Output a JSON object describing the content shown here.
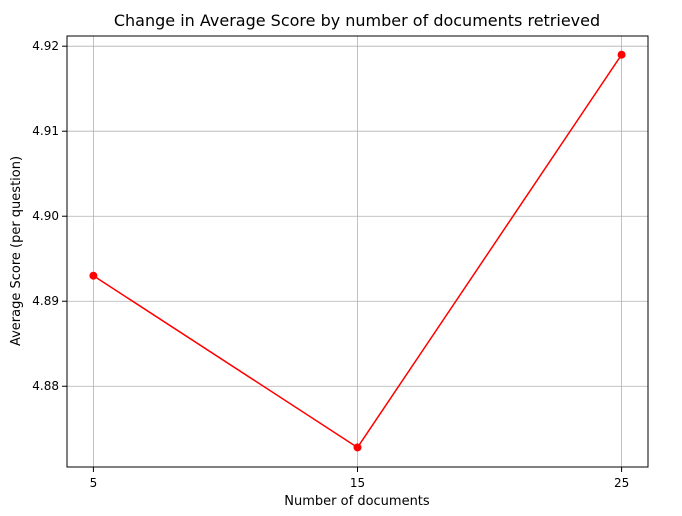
{
  "chart_data": {
    "type": "line",
    "title": "Change in Average Score by number of documents retrieved",
    "xlabel": "Number of documents",
    "ylabel": "Average Score (per question)",
    "x": [
      5,
      15,
      25
    ],
    "x_tick_labels": [
      "5",
      "15",
      "25"
    ],
    "y_ticks": [
      4.88,
      4.89,
      4.9,
      4.91,
      4.92
    ],
    "y_tick_labels": [
      "4.88",
      "4.89",
      "4.90",
      "4.91",
      "4.92"
    ],
    "xlim": [
      4.0,
      26.0
    ],
    "ylim": [
      4.8705,
      4.9212
    ],
    "grid": true,
    "series": [
      {
        "values": [
          4.893,
          4.8728,
          4.919
        ],
        "color": "#ff0000",
        "marker": "circle"
      }
    ]
  }
}
